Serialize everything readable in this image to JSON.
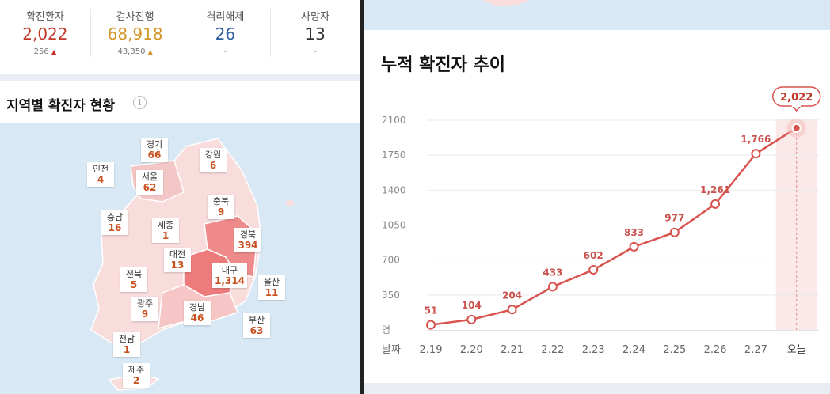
{
  "summary": [
    {
      "label": "확진환자",
      "value": "2,022",
      "delta": "256",
      "up": true,
      "color": "#c0392b"
    },
    {
      "label": "검사진행",
      "value": "68,918",
      "delta": "43,350",
      "up": true,
      "color": "#d4962a"
    },
    {
      "label": "격리해제",
      "value": "26",
      "delta": "-",
      "up": false,
      "color": "#2f5f9f"
    },
    {
      "label": "사망자",
      "value": "13",
      "delta": "-",
      "up": false,
      "color": "#333333"
    }
  ],
  "map": {
    "title": "지역별 확진자 현황",
    "info_icon": "i",
    "regions": [
      {
        "name": "경기",
        "value": "66"
      },
      {
        "name": "강원",
        "value": "6"
      },
      {
        "name": "인천",
        "value": "4"
      },
      {
        "name": "서울",
        "value": "62"
      },
      {
        "name": "충북",
        "value": "9"
      },
      {
        "name": "충남",
        "value": "16"
      },
      {
        "name": "세종",
        "value": "1"
      },
      {
        "name": "경북",
        "value": "394"
      },
      {
        "name": "대전",
        "value": "13"
      },
      {
        "name": "대구",
        "value": "1,314"
      },
      {
        "name": "전북",
        "value": "5"
      },
      {
        "name": "울산",
        "value": "11"
      },
      {
        "name": "광주",
        "value": "9"
      },
      {
        "name": "경남",
        "value": "46"
      },
      {
        "name": "부산",
        "value": "63"
      },
      {
        "name": "전남",
        "value": "1"
      },
      {
        "name": "제주",
        "value": "2"
      }
    ]
  },
  "chart_data": {
    "type": "line",
    "title": "누적 확진자 추이",
    "ylabel": "명",
    "xlabel": "날짜",
    "categories": [
      "2.19",
      "2.20",
      "2.21",
      "2.22",
      "2.23",
      "2.24",
      "2.25",
      "2.26",
      "2.27",
      "오늘"
    ],
    "values": [
      51,
      104,
      204,
      433,
      602,
      833,
      977,
      1261,
      1766,
      2022
    ],
    "data_labels": [
      "51",
      "104",
      "204",
      "433",
      "602",
      "833",
      "977",
      "1,261",
      "1,766",
      "2,022"
    ],
    "yticks": [
      350,
      700,
      1050,
      1400,
      1750,
      2100
    ],
    "ylim": [
      0,
      2100
    ],
    "grid": true,
    "line_color": "#d9534f",
    "highlight": "오늘"
  }
}
